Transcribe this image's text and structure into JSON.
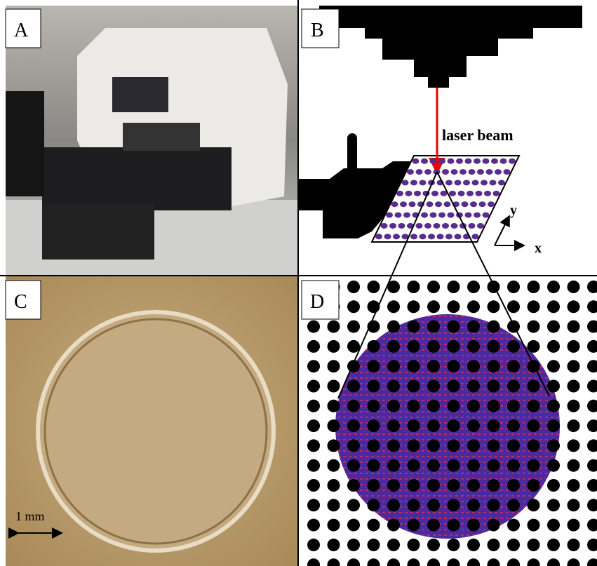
{
  "panels": [
    {
      "label": "A"
    },
    {
      "label": "B",
      "annotations": [
        "laser beam"
      ],
      "axes": [
        "y",
        "x"
      ]
    },
    {
      "label": "C",
      "scale_bar": "1 mm"
    },
    {
      "label": "D"
    }
  ]
}
